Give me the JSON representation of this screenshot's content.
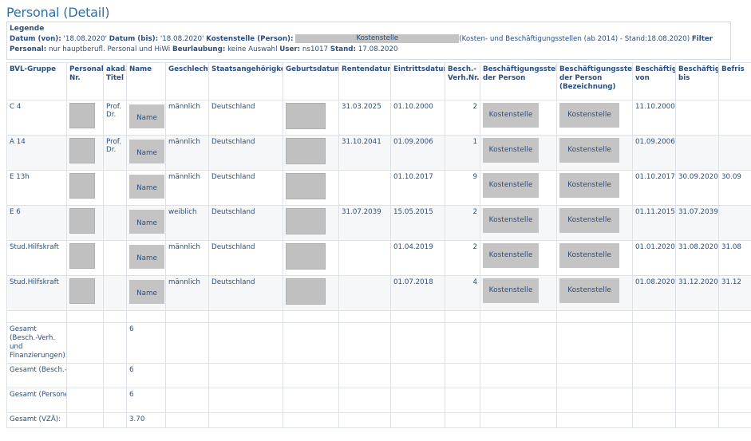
{
  "page_title": "Personal (Detail)",
  "legend": {
    "title": "Legende",
    "datum_von_label": "Datum (von):",
    "datum_von_value": "'18.08.2020'",
    "datum_bis_label": "Datum (bis):",
    "datum_bis_value": "'18.08.2020'",
    "kostenstelle_label": "Kostenstelle (Person):",
    "kostenstelle_value": "Kostenstelle",
    "kostenstelle_suffix": "(Kosten- und Beschäftigungsstellen (ab 2014) - Stand:18.08.2020)",
    "filter_label": "Filter Personal:",
    "filter_value": "nur hauptberufl. Personal und HiWi",
    "beurlaubung_label": "Beurlaubung:",
    "beurlaubung_value": "keine Auswahl",
    "user_label": "User:",
    "user_value": "ns1017",
    "stand_label": "Stand:",
    "stand_value": "17.08.2020"
  },
  "columns": [
    "BVL-Gruppe",
    "Personal-Nr.",
    "akad. Titel",
    "Name",
    "Geschlecht",
    "Staatsangehörigkeit",
    "Geburtsdatum",
    "Rentendatum",
    "Eintrittsdatum",
    "Besch.-Verh.Nr.",
    "Beschäftigungsstelle der Person",
    "Beschäftigungsstelle der Person (Bezeichnung)",
    "Beschäftigt von",
    "Beschäftigt bis",
    "Befris"
  ],
  "rows": [
    {
      "bvl": "C 4",
      "titel": "Prof. Dr.",
      "name": "Name",
      "geschlecht": "männlich",
      "staat": "Deutschland",
      "rente": "31.03.2025",
      "eintritt": "01.10.2000",
      "nr": "2",
      "stelle": "Kostenstelle",
      "bez": "Kostenstelle",
      "von": "11.10.2000",
      "bis": "",
      "befr": ""
    },
    {
      "bvl": "A 14",
      "titel": "Prof. Dr.",
      "name": "Name",
      "geschlecht": "männlich",
      "staat": "Deutschland",
      "rente": "31.10.2041",
      "eintritt": "01.09.2006",
      "nr": "1",
      "stelle": "Kostenstelle",
      "bez": "Kostenstelle",
      "von": "01.09.2006",
      "bis": "",
      "befr": ""
    },
    {
      "bvl": "E 13h",
      "titel": "",
      "name": "Name",
      "geschlecht": "männlich",
      "staat": "Deutschland",
      "rente": "",
      "eintritt": "01.10.2017",
      "nr": "9",
      "stelle": "Kostenstelle",
      "bez": "Kostenstelle",
      "von": "01.10.2017",
      "bis": "30.09.2020",
      "befr": "30.09"
    },
    {
      "bvl": "E 6",
      "titel": "",
      "name": "Name",
      "geschlecht": "weiblich",
      "staat": "Deutschland",
      "rente": "31.07.2039",
      "eintritt": "15.05.2015",
      "nr": "2",
      "stelle": "Kostenstelle",
      "bez": "Kostenstelle",
      "von": "01.11.2015",
      "bis": "31.07.2039",
      "befr": ""
    },
    {
      "bvl": "Stud.Hilfskraft",
      "titel": "",
      "name": "Name",
      "geschlecht": "männlich",
      "staat": "Deutschland",
      "rente": "",
      "eintritt": "01.04.2019",
      "nr": "2",
      "stelle": "Kostenstelle",
      "bez": "Kostenstelle",
      "von": "01.01.2020",
      "bis": "31.08.2020",
      "befr": "31.08"
    },
    {
      "bvl": "Stud.Hilfskraft",
      "titel": "",
      "name": "Name",
      "geschlecht": "männlich",
      "staat": "Deutschland",
      "rente": "",
      "eintritt": "01.07.2018",
      "nr": "4",
      "stelle": "Kostenstelle",
      "bez": "Kostenstelle",
      "von": "01.08.2020",
      "bis": "31.12.2020",
      "befr": "31.12"
    }
  ],
  "totals": [
    {
      "label": "Gesamt (Besch.-Verh. und Finanzierungen):",
      "value": "6"
    },
    {
      "label": "Gesamt (Besch.-Verh.):",
      "value": "6"
    },
    {
      "label": "Gesamt (Personen):",
      "value": "6"
    },
    {
      "label": "Gesamt (VZÄ):",
      "value": "3.70"
    }
  ]
}
